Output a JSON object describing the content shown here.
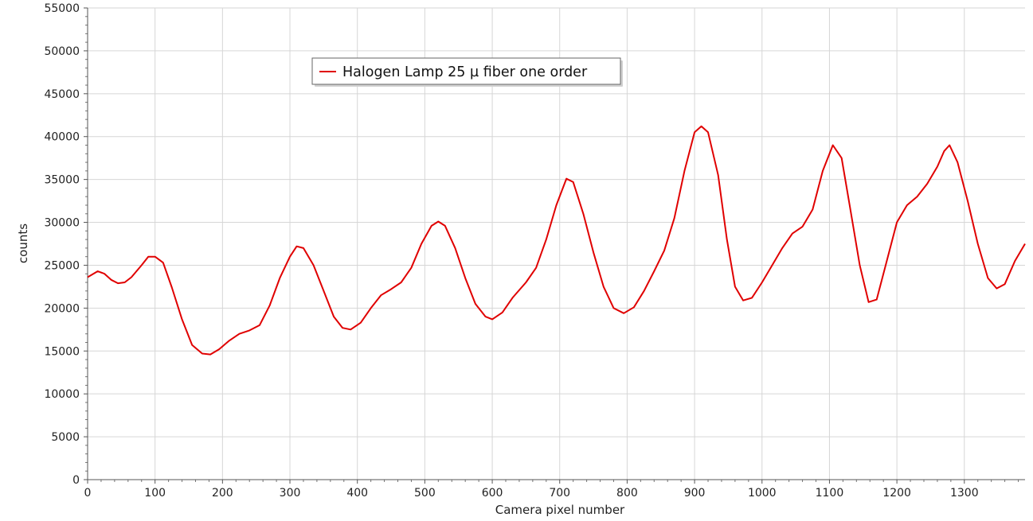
{
  "chart_data": {
    "type": "line",
    "title": "",
    "xlabel": "Camera pixel number",
    "ylabel": "counts",
    "xlim": [
      0,
      1390
    ],
    "ylim": [
      0,
      55000
    ],
    "x_ticks": [
      0,
      100,
      200,
      300,
      400,
      500,
      600,
      700,
      800,
      900,
      1000,
      1100,
      1200,
      1300
    ],
    "y_ticks": [
      0,
      5000,
      10000,
      15000,
      20000,
      25000,
      30000,
      35000,
      40000,
      45000,
      50000,
      55000
    ],
    "grid": true,
    "legend_position": "top-center",
    "series": [
      {
        "name": "Halogen Lamp 25 µ fiber one order",
        "color": "#e00000",
        "points": [
          [
            0,
            23600
          ],
          [
            15,
            24300
          ],
          [
            25,
            24000
          ],
          [
            35,
            23300
          ],
          [
            45,
            22900
          ],
          [
            55,
            23000
          ],
          [
            65,
            23600
          ],
          [
            80,
            25000
          ],
          [
            90,
            26000
          ],
          [
            100,
            26000
          ],
          [
            112,
            25300
          ],
          [
            125,
            22400
          ],
          [
            140,
            18700
          ],
          [
            155,
            15700
          ],
          [
            170,
            14700
          ],
          [
            182,
            14600
          ],
          [
            195,
            15200
          ],
          [
            210,
            16200
          ],
          [
            225,
            17000
          ],
          [
            240,
            17400
          ],
          [
            255,
            18000
          ],
          [
            270,
            20300
          ],
          [
            285,
            23500
          ],
          [
            300,
            26000
          ],
          [
            310,
            27200
          ],
          [
            320,
            27000
          ],
          [
            335,
            25000
          ],
          [
            350,
            22000
          ],
          [
            365,
            19000
          ],
          [
            378,
            17700
          ],
          [
            390,
            17500
          ],
          [
            405,
            18300
          ],
          [
            420,
            20000
          ],
          [
            435,
            21500
          ],
          [
            450,
            22200
          ],
          [
            465,
            23000
          ],
          [
            480,
            24700
          ],
          [
            495,
            27500
          ],
          [
            510,
            29600
          ],
          [
            520,
            30100
          ],
          [
            530,
            29600
          ],
          [
            545,
            27000
          ],
          [
            560,
            23500
          ],
          [
            575,
            20500
          ],
          [
            590,
            19000
          ],
          [
            600,
            18700
          ],
          [
            615,
            19500
          ],
          [
            630,
            21200
          ],
          [
            650,
            23000
          ],
          [
            665,
            24700
          ],
          [
            680,
            28000
          ],
          [
            695,
            32000
          ],
          [
            710,
            35100
          ],
          [
            720,
            34700
          ],
          [
            735,
            31000
          ],
          [
            750,
            26500
          ],
          [
            765,
            22500
          ],
          [
            780,
            20000
          ],
          [
            795,
            19400
          ],
          [
            810,
            20100
          ],
          [
            825,
            22000
          ],
          [
            840,
            24300
          ],
          [
            855,
            26700
          ],
          [
            870,
            30500
          ],
          [
            885,
            36000
          ],
          [
            900,
            40500
          ],
          [
            910,
            41200
          ],
          [
            920,
            40500
          ],
          [
            935,
            35500
          ],
          [
            948,
            28000
          ],
          [
            960,
            22500
          ],
          [
            972,
            20900
          ],
          [
            985,
            21200
          ],
          [
            1000,
            23000
          ],
          [
            1015,
            25000
          ],
          [
            1030,
            27000
          ],
          [
            1045,
            28700
          ],
          [
            1060,
            29500
          ],
          [
            1075,
            31500
          ],
          [
            1090,
            36000
          ],
          [
            1105,
            39000
          ],
          [
            1118,
            37500
          ],
          [
            1130,
            32000
          ],
          [
            1145,
            25000
          ],
          [
            1158,
            20700
          ],
          [
            1170,
            21000
          ],
          [
            1185,
            25500
          ],
          [
            1200,
            30000
          ],
          [
            1215,
            32000
          ],
          [
            1230,
            33000
          ],
          [
            1245,
            34500
          ],
          [
            1260,
            36500
          ],
          [
            1270,
            38300
          ],
          [
            1278,
            39000
          ],
          [
            1290,
            37000
          ],
          [
            1305,
            32500
          ],
          [
            1320,
            27500
          ],
          [
            1335,
            23500
          ],
          [
            1348,
            22300
          ],
          [
            1360,
            22800
          ],
          [
            1375,
            25500
          ],
          [
            1390,
            27500
          ]
        ]
      }
    ]
  }
}
